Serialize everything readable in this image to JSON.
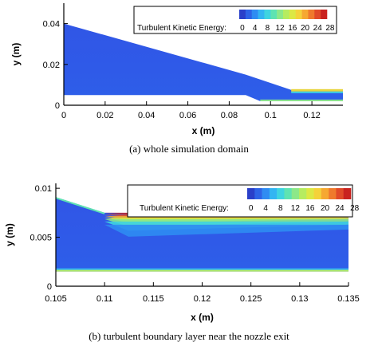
{
  "legend_colors": [
    "#2a3fc9",
    "#2e63e6",
    "#2f8cf2",
    "#33b5f2",
    "#3fd4e0",
    "#5ee3b2",
    "#8ce889",
    "#b6ec60",
    "#dce844",
    "#f4d23a",
    "#f6a831",
    "#ef7a2c",
    "#e04a28",
    "#c9221f"
  ],
  "domain_color": "#2f5ae8",
  "chart_data": [
    {
      "type": "heatmap",
      "panel": "a",
      "title": "",
      "xlabel": "x (m)",
      "ylabel": "y (m)",
      "xlim": [
        0,
        0.135
      ],
      "ylim": [
        0,
        0.05
      ],
      "x_ticks": [
        "0",
        "0.02",
        "0.04",
        "0.06",
        "0.08",
        "0.1",
        "0.12"
      ],
      "x_tick_values": [
        0,
        0.02,
        0.04,
        0.06,
        0.08,
        0.1,
        0.12
      ],
      "y_ticks": [
        "0",
        "0.02",
        "0.04"
      ],
      "y_tick_values": [
        0,
        0.02,
        0.04
      ],
      "legend_title": "Turbulent Kinetic Energy:",
      "legend_ticks": [
        "0",
        "4",
        "8",
        "12",
        "16",
        "20",
        "24",
        "28"
      ],
      "legend_placement": "top-right",
      "domain_top": [
        [
          0,
          0.04
        ],
        [
          0.088,
          0.015
        ],
        [
          0.11,
          0.0075
        ],
        [
          0.135,
          0.0075
        ]
      ],
      "domain_bottom": [
        [
          0,
          0.005
        ],
        [
          0.088,
          0.005
        ],
        [
          0.095,
          0.002
        ],
        [
          0.135,
          0.002
        ]
      ]
    },
    {
      "type": "heatmap",
      "panel": "b",
      "title": "",
      "xlabel": "x (m)",
      "ylabel": "y (m)",
      "xlim": [
        0.105,
        0.135
      ],
      "ylim": [
        0,
        0.0105
      ],
      "x_ticks": [
        "0.105",
        "0.11",
        "0.115",
        "0.12",
        "0.125",
        "0.13",
        "0.135"
      ],
      "x_tick_values": [
        0.105,
        0.11,
        0.115,
        0.12,
        0.125,
        0.13,
        0.135
      ],
      "y_ticks": [
        "0",
        "0.005",
        "0.01"
      ],
      "y_tick_values": [
        0,
        0.005,
        0.01
      ],
      "legend_title": "Turbulent Kinetic Energy:",
      "legend_ticks": [
        "0",
        "4",
        "8",
        "12",
        "16",
        "20",
        "24",
        "28"
      ],
      "legend_placement": "top-right",
      "domain_top": [
        [
          0.105,
          0.0091
        ],
        [
          0.11,
          0.0075
        ],
        [
          0.135,
          0.0074
        ]
      ],
      "domain_bottom": [
        [
          0.105,
          0.0015
        ],
        [
          0.135,
          0.0015
        ]
      ]
    }
  ],
  "captions": {
    "a": "(a) whole simulation domain",
    "b": "(b) turbulent boundary layer near the nozzle exit"
  }
}
